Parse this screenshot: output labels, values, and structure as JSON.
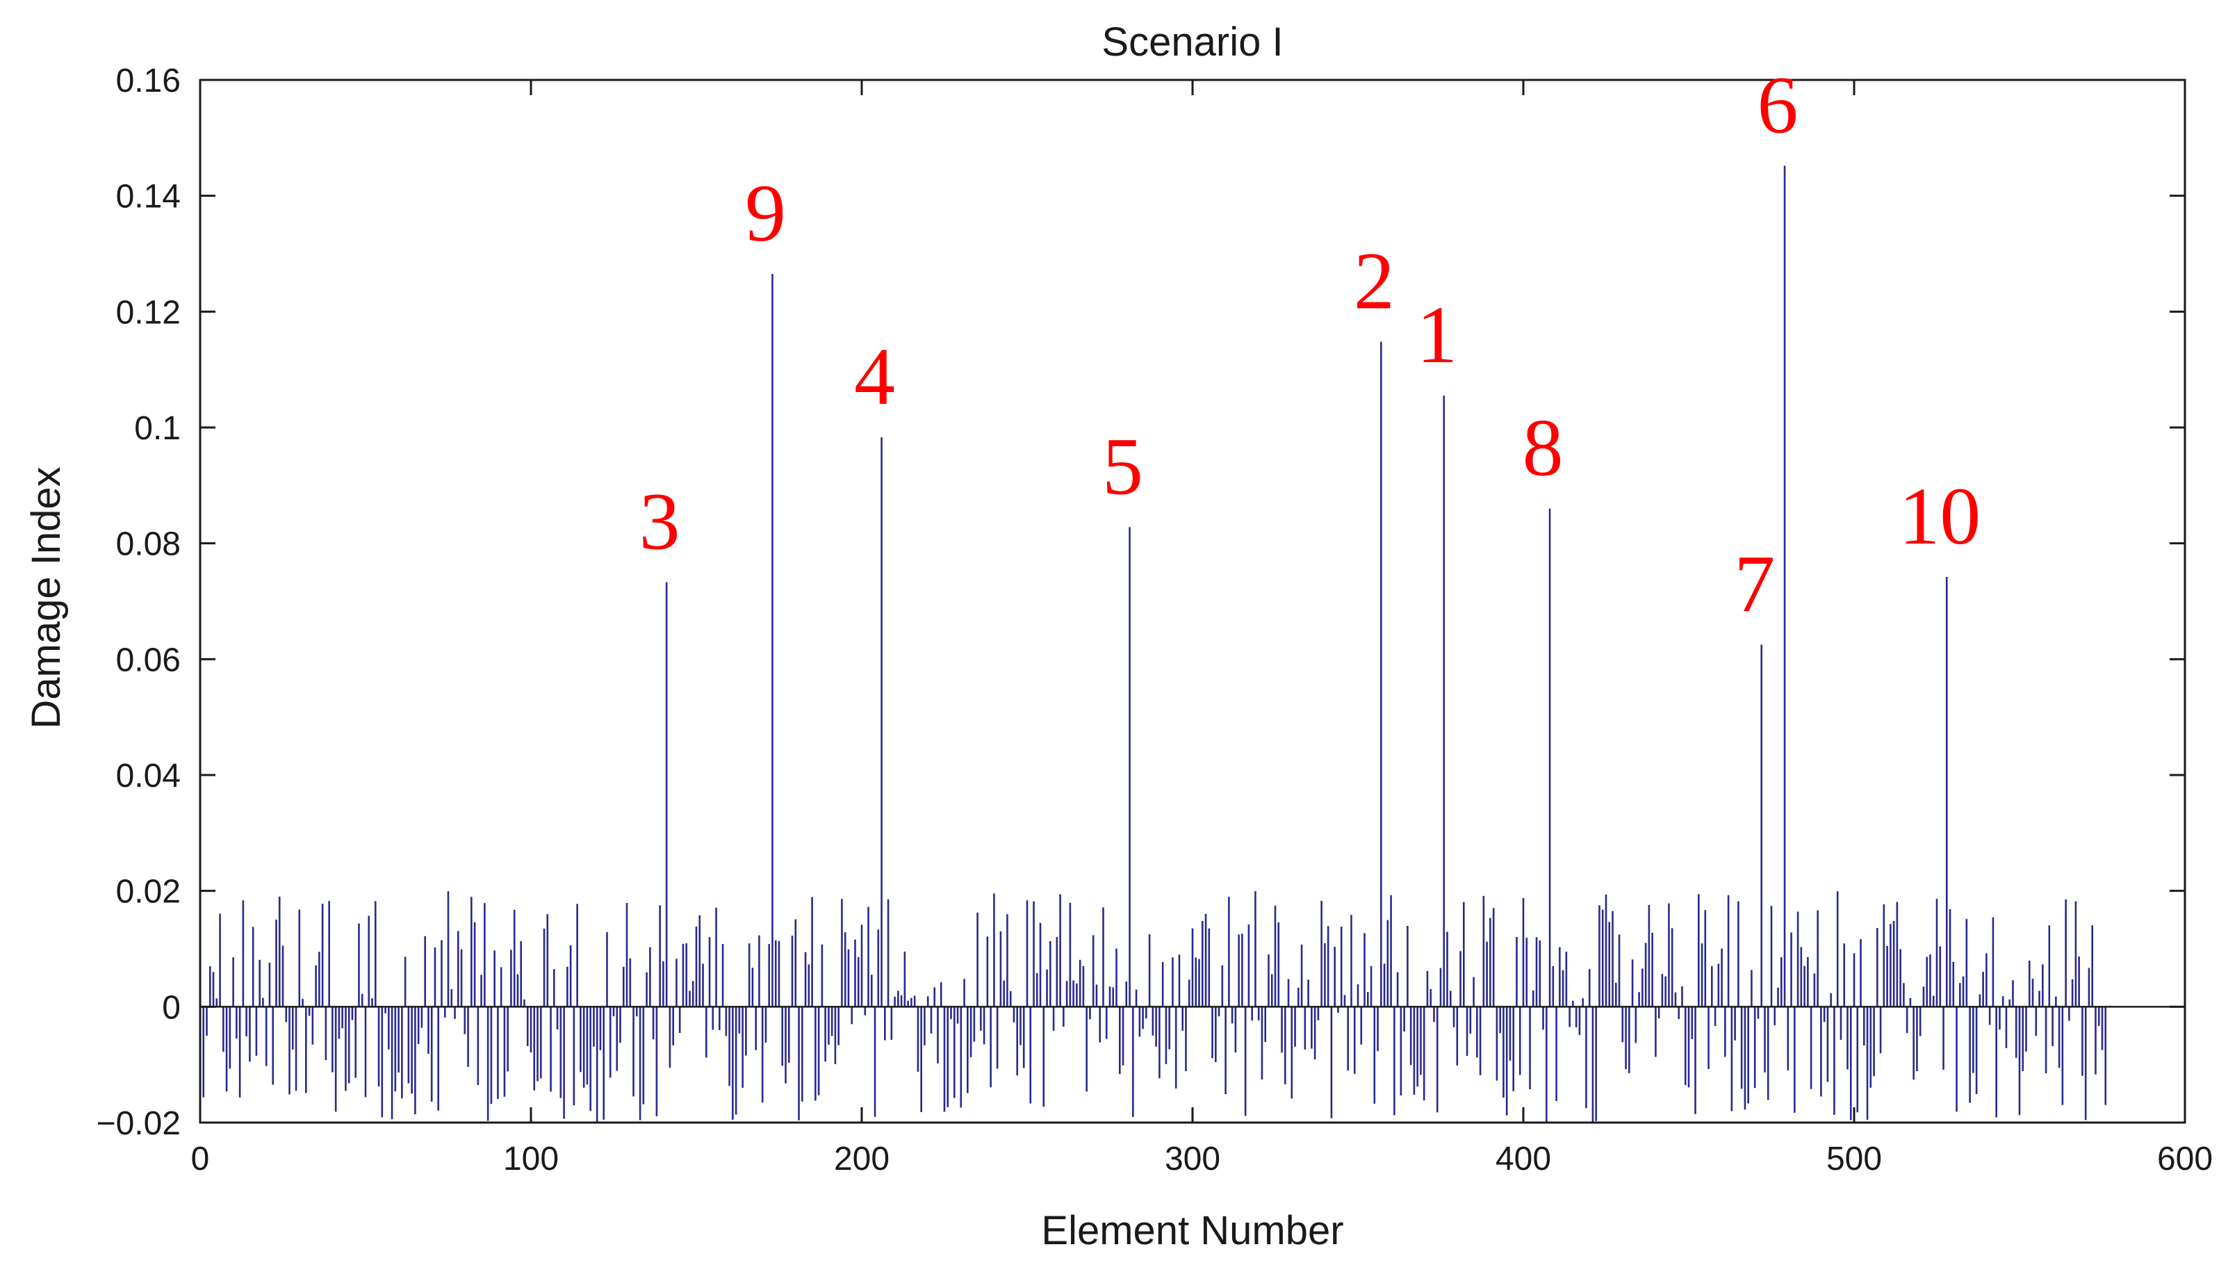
{
  "chart_data": {
    "type": "bar",
    "title": "Scenario I",
    "xlabel": "Element Number",
    "ylabel": "Damage Index",
    "xlim": [
      0,
      600
    ],
    "ylim": [
      -0.02,
      0.16
    ],
    "xticks": [
      "0",
      "100",
      "200",
      "300",
      "400",
      "500",
      "600"
    ],
    "yticks": [
      "0.16",
      "0.14",
      "0.12",
      "0.1",
      "0.08",
      "0.06",
      "0.04",
      "0.02",
      "0",
      "−0.02"
    ],
    "grid": false,
    "series_color": "#2a2a8c",
    "annotation_color": "#ff0000",
    "n_elements": 576,
    "noise_amplitude": 0.02,
    "damaged_elements": [
      {
        "label": "1",
        "x": 376,
        "y": 0.1055
      },
      {
        "label": "2",
        "x": 357,
        "y": 0.1148
      },
      {
        "label": "3",
        "x": 141,
        "y": 0.0733
      },
      {
        "label": "4",
        "x": 206,
        "y": 0.0983
      },
      {
        "label": "5",
        "x": 281,
        "y": 0.0828
      },
      {
        "label": "6",
        "x": 479,
        "y": 0.1452
      },
      {
        "label": "7",
        "x": 472,
        "y": 0.0625
      },
      {
        "label": "8",
        "x": 408,
        "y": 0.086
      },
      {
        "label": "9",
        "x": 173,
        "y": 0.1265
      },
      {
        "label": "10",
        "x": 528,
        "y": 0.0742
      }
    ]
  }
}
